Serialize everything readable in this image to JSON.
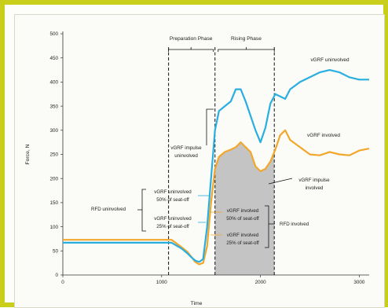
{
  "chart_data": {
    "type": "line",
    "ylabel": "Force, N",
    "xlabel": "Time",
    "xlim": [
      0,
      3100
    ],
    "ylim": [
      0,
      500
    ],
    "x_ticks": [
      0,
      1000,
      2000,
      3000
    ],
    "y_ticks": [
      0,
      50,
      100,
      150,
      200,
      250,
      300,
      350,
      400,
      450,
      500
    ],
    "grid": false,
    "colors": {
      "uninvolved": "#29aee0",
      "involved": "#f2a72c",
      "shade": "#c4c4c4"
    },
    "series": [
      {
        "name": "vGRF uninvolved",
        "x": [
          0,
          1000,
          1100,
          1200,
          1260,
          1300,
          1340,
          1380,
          1420,
          1460,
          1500,
          1540,
          1580,
          1640,
          1700,
          1750,
          1800,
          1850,
          1900,
          1950,
          2000,
          2050,
          2100,
          2150,
          2200,
          2250,
          2300,
          2400,
          2500,
          2600,
          2700,
          2800,
          2900,
          3000,
          3100
        ],
        "values": [
          67,
          67,
          67,
          55,
          45,
          37,
          30,
          27,
          33,
          100,
          200,
          300,
          340,
          350,
          360,
          385,
          385,
          360,
          330,
          300,
          275,
          305,
          355,
          375,
          370,
          365,
          385,
          400,
          410,
          420,
          425,
          420,
          410,
          405,
          405
        ]
      },
      {
        "name": "vGRF involved",
        "x": [
          0,
          1000,
          1100,
          1200,
          1260,
          1300,
          1340,
          1380,
          1420,
          1460,
          1500,
          1540,
          1580,
          1640,
          1700,
          1750,
          1800,
          1850,
          1900,
          1950,
          2000,
          2050,
          2100,
          2150,
          2200,
          2250,
          2300,
          2400,
          2500,
          2600,
          2700,
          2800,
          2900,
          3000,
          3100
        ],
        "values": [
          73,
          73,
          73,
          58,
          48,
          38,
          27,
          22,
          25,
          60,
          150,
          220,
          245,
          255,
          260,
          265,
          275,
          265,
          255,
          225,
          215,
          220,
          235,
          260,
          290,
          300,
          280,
          265,
          250,
          248,
          255,
          250,
          248,
          258,
          262
        ]
      }
    ],
    "phases": [
      {
        "label": "Preparation Phase",
        "start": 1070,
        "end": 1540
      },
      {
        "label": "Rising Phase",
        "start": 1540,
        "end": 2140
      }
    ],
    "annotations": {
      "uninvolved_label": "vGRF uninvolved",
      "involved_label": "vGRF involved",
      "impulse_uninvolved": [
        "vGRF impulse",
        "uninvolved"
      ],
      "impulse_involved": [
        "vGRF impulse",
        "involved"
      ],
      "rfd_uninvolved": "RFD uninvolved",
      "rfd_involved": "RFD involved",
      "uninv_50": [
        "vGRF uninvolved",
        "50% of seat-off"
      ],
      "uninv_25": [
        "vGRF uninvolved",
        "25% of seat-off"
      ],
      "inv_50": [
        "vGRF involved",
        "50% of seat-off"
      ],
      "inv_25": [
        "vGRF involved",
        "25% of seat-off"
      ]
    }
  }
}
